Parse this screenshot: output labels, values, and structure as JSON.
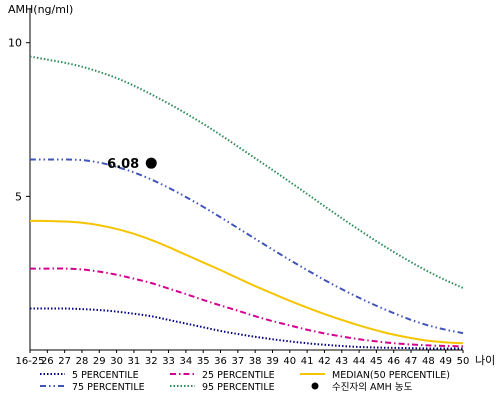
{
  "chart_data": {
    "type": "line",
    "title": "",
    "ylabel": "AMH(ng/ml)",
    "xlabel": "나이",
    "ylim": [
      0,
      11
    ],
    "yticks": [
      5,
      10
    ],
    "grid": false,
    "legend_position": "bottom",
    "categories": [
      "16-25",
      "26",
      "27",
      "28",
      "29",
      "30",
      "31",
      "32",
      "33",
      "34",
      "35",
      "36",
      "37",
      "38",
      "39",
      "40",
      "41",
      "42",
      "43",
      "44",
      "45",
      "46",
      "47",
      "48",
      "49",
      "50"
    ],
    "series": [
      {
        "name": "5 PERCENTILE",
        "color": "#000080",
        "dash": "dotted",
        "values": [
          1.35,
          1.35,
          1.35,
          1.33,
          1.3,
          1.25,
          1.18,
          1.1,
          0.98,
          0.86,
          0.74,
          0.62,
          0.52,
          0.43,
          0.35,
          0.28,
          0.22,
          0.17,
          0.13,
          0.1,
          0.08,
          0.07,
          0.06,
          0.05,
          0.05,
          0.05
        ]
      },
      {
        "name": "25 PERCENTILE",
        "color": "#d4008f",
        "dash": "dashdot",
        "values": [
          2.65,
          2.65,
          2.65,
          2.62,
          2.55,
          2.45,
          2.32,
          2.18,
          2.0,
          1.82,
          1.63,
          1.45,
          1.28,
          1.1,
          0.94,
          0.8,
          0.66,
          0.54,
          0.44,
          0.35,
          0.28,
          0.22,
          0.18,
          0.15,
          0.13,
          0.12
        ]
      },
      {
        "name": "MEDIAN(50 PERCENTILE)",
        "color": "#f5c400",
        "dash": "solid",
        "values": [
          4.2,
          4.2,
          4.18,
          4.14,
          4.06,
          3.94,
          3.78,
          3.58,
          3.35,
          3.1,
          2.85,
          2.6,
          2.34,
          2.08,
          1.84,
          1.6,
          1.38,
          1.17,
          0.98,
          0.8,
          0.64,
          0.5,
          0.39,
          0.3,
          0.25,
          0.22
        ]
      },
      {
        "name": "75 PERCENTILE",
        "color": "#4055b5",
        "dash": "dashdotdot",
        "values": [
          6.2,
          6.2,
          6.2,
          6.18,
          6.1,
          5.96,
          5.78,
          5.55,
          5.28,
          4.98,
          4.66,
          4.32,
          3.97,
          3.62,
          3.27,
          2.93,
          2.6,
          2.28,
          1.98,
          1.7,
          1.44,
          1.2,
          0.98,
          0.8,
          0.66,
          0.55
        ]
      },
      {
        "name": "95 PERCENTILE",
        "color": "#2e8b57",
        "dash": "dotted",
        "values": [
          9.55,
          9.45,
          9.35,
          9.22,
          9.05,
          8.85,
          8.6,
          8.32,
          8.02,
          7.7,
          7.36,
          7.0,
          6.62,
          6.24,
          5.86,
          5.47,
          5.08,
          4.68,
          4.29,
          3.91,
          3.54,
          3.19,
          2.86,
          2.55,
          2.27,
          2.02
        ]
      }
    ],
    "marker": {
      "name": "수진자의 AMH 농도",
      "x": "32",
      "y": 6.08,
      "label": "6.08",
      "color": "#000000"
    }
  }
}
